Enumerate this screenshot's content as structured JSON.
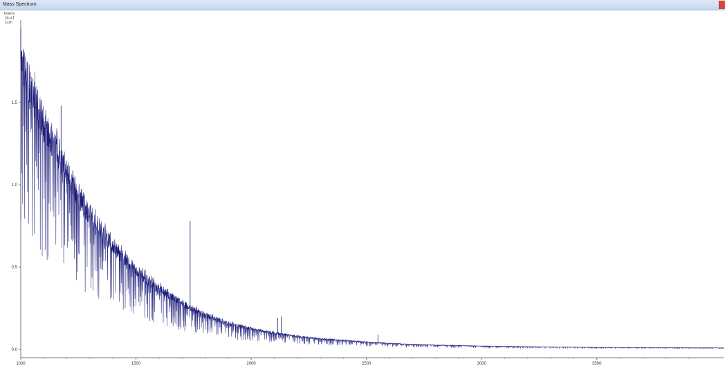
{
  "window": {
    "title": "Mass Spectrum"
  },
  "colors": {
    "trace": "#1c1c7a",
    "axis": "#7a7a7a",
    "close": "#d24a3a"
  },
  "chart_data": {
    "type": "line",
    "title": "",
    "xlabel": "",
    "ylabel_lines": [
      "Intens.",
      "[a.u.]"
    ],
    "y_multiplier": "x10⁴",
    "x_ticks": [
      1000,
      1500,
      2000,
      2500,
      3000,
      3500
    ],
    "x_tick_labels": [
      "1000",
      "1500",
      "2000",
      "2500",
      "3000",
      "3500"
    ],
    "y_ticks": [
      0.0,
      0.5,
      1.0,
      1.5
    ],
    "y_tick_labels": [
      "0.0",
      "0.5",
      "1.0",
      "1.5"
    ],
    "xlim": [
      1000,
      4050
    ],
    "ylim": [
      -0.05,
      2.0
    ],
    "grid": false,
    "legend": "none",
    "envelope": {
      "x": [
        1000,
        1050,
        1100,
        1150,
        1200,
        1250,
        1300,
        1350,
        1400,
        1450,
        1500,
        1600,
        1700,
        1800,
        1900,
        2000,
        2100,
        2200,
        2300,
        2400,
        2500,
        2600,
        2700,
        2800,
        2900,
        3000,
        3200,
        3400,
        3600,
        3800,
        4050
      ],
      "y": [
        1.75,
        1.55,
        1.38,
        1.22,
        1.08,
        0.94,
        0.82,
        0.72,
        0.63,
        0.55,
        0.48,
        0.37,
        0.28,
        0.21,
        0.16,
        0.125,
        0.1,
        0.08,
        0.065,
        0.055,
        0.045,
        0.037,
        0.031,
        0.027,
        0.024,
        0.021,
        0.017,
        0.014,
        0.012,
        0.011,
        0.01
      ]
    },
    "peaks": [
      {
        "x": 1000,
        "y": 1.95
      },
      {
        "x": 1175,
        "y": 1.48
      },
      {
        "x": 1735,
        "y": 0.78
      },
      {
        "x": 2115,
        "y": 0.19
      },
      {
        "x": 2130,
        "y": 0.2
      },
      {
        "x": 2550,
        "y": 0.09
      }
    ],
    "noise": {
      "amplitude_fraction": 0.6,
      "spike_every": 5
    }
  }
}
